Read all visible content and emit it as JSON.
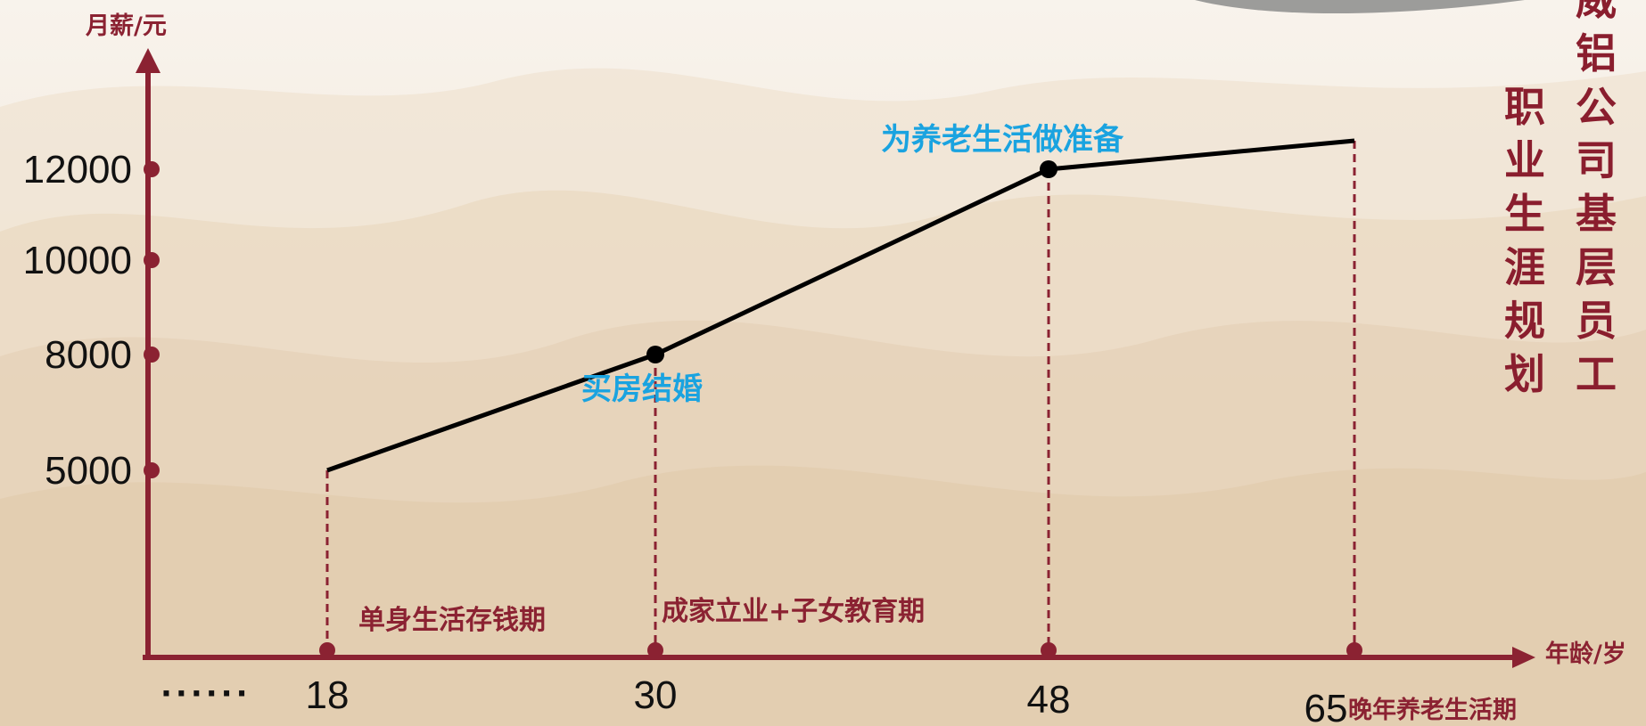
{
  "chart_data": {
    "type": "line",
    "ylabel": "月薪/元",
    "xlabel": "年龄/岁",
    "y_ticks": [
      5000,
      8000,
      10000,
      12000
    ],
    "x_ticks": [
      "18",
      "30",
      "48",
      "65"
    ],
    "x_ellipsis": "······",
    "ylim": [
      0,
      14000
    ],
    "series": [
      {
        "x": [
          18,
          30,
          48,
          62
        ],
        "y": [
          5000,
          8000,
          12000,
          12700
        ]
      }
    ],
    "milestones": [
      {
        "x": 30,
        "y": 8000,
        "label": "买房结婚"
      },
      {
        "x": 48,
        "y": 12000,
        "label": "为养老生活做准备"
      }
    ],
    "stages": [
      {
        "label": "单身生活存钱期"
      },
      {
        "label": "成家立业+子女教育期"
      },
      {
        "label": "晚年养老生活期"
      }
    ],
    "grid": false,
    "colors": {
      "axis": "#8b2232",
      "line": "#000000",
      "milestone_label": "#1aa3e0",
      "stage_label": "#8b2232"
    }
  },
  "side_text": {
    "column_left": "职业生涯规划",
    "column_right": "威铝公司基层员工"
  }
}
